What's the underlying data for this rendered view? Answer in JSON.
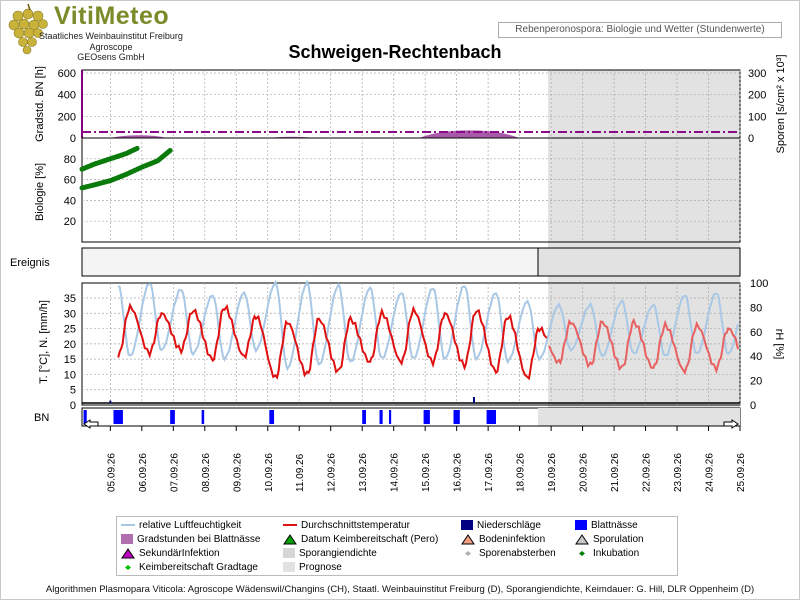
{
  "header": {
    "brand": "VitiMeteo",
    "brand_lines": [
      "Staatliches Weinbauinstitut Freiburg",
      "Agroscope",
      "GEOsens GmbH"
    ],
    "subtitle": "Rebenperonospora: Biologie und Wetter (Stundenwerte)",
    "station": "Schweigen-Rechtenbach"
  },
  "colors": {
    "humidity": "#a9c8e6",
    "temperature": "#e01010",
    "temperature_forecast": "#e86060",
    "biology": "#0a7a0a",
    "gradstunden": "#9a3c9a",
    "sporen_line": "#8a0a8a",
    "blattnaesse": "#0000ff",
    "forecast_bg": "#e2e2e2"
  },
  "icons": {
    "arrow-left": "arrow-left-icon",
    "arrow-right": "arrow-right-icon"
  },
  "panels": {
    "top": {
      "ylabel_left": "Gradstd. BN [h]",
      "ylabel_right": "Sporen [s/cm² x 10³]",
      "left_ticks": [
        "600",
        "400",
        "200",
        "0"
      ],
      "right_ticks": [
        "300",
        "200",
        "100",
        "0"
      ]
    },
    "bio": {
      "ylabel": "Biologie [%]",
      "ticks": [
        "80",
        "60",
        "40",
        "20"
      ]
    },
    "event": {
      "label": "Ereignis"
    },
    "weather": {
      "ylabel_left": "T. [°C], N. [mm/h]",
      "ylabel_right": "rH [%]",
      "left_ticks": [
        "35",
        "30",
        "25",
        "20",
        "15",
        "10",
        "5",
        "0"
      ],
      "right_ticks": [
        "100",
        "80",
        "60",
        "40",
        "20",
        "0"
      ]
    },
    "bn": {
      "label": "BN"
    }
  },
  "chart_data": {
    "type": "line",
    "x_labels": [
      "05.09.26",
      "06.09.26",
      "07.09.26",
      "08.09.26",
      "09.09.26",
      "10.09.26",
      "11.09.26",
      "12.09.26",
      "13.09.26",
      "14.09.26",
      "15.09.26",
      "16.09.26",
      "17.09.26",
      "18.09.26",
      "19.09.26",
      "20.09.26",
      "21.09.26",
      "22.09.26",
      "23.09.26",
      "24.09.26",
      "25.09.26"
    ],
    "x_range_days": [
      4.1,
      25.0
    ],
    "forecast_start_day": 18.9,
    "temperature_daily": {
      "day": [
        5,
        6,
        7,
        8,
        9,
        10,
        11,
        12,
        13,
        14,
        15,
        16,
        17,
        18,
        19,
        20,
        21,
        22,
        23,
        24,
        25
      ],
      "max": [
        32,
        30,
        31,
        32,
        29,
        27,
        28,
        28,
        30,
        31,
        30,
        31,
        29,
        25,
        27,
        27,
        27,
        26,
        26,
        25,
        26
      ],
      "min": [
        16,
        17,
        18,
        15,
        16,
        9,
        10,
        11,
        14,
        14,
        14,
        13,
        11,
        9,
        14,
        13,
        12,
        12,
        11,
        12,
        13
      ]
    },
    "humidity_daily": {
      "day": [
        5,
        6,
        7,
        8,
        9,
        10,
        11,
        12,
        13,
        14,
        15,
        16,
        17,
        18,
        19,
        20,
        21,
        22,
        23,
        24,
        25
      ],
      "max": [
        98,
        100,
        95,
        90,
        92,
        100,
        100,
        98,
        96,
        92,
        96,
        98,
        92,
        85,
        82,
        82,
        85,
        82,
        90,
        92,
        92
      ],
      "min": [
        40,
        45,
        42,
        38,
        45,
        30,
        33,
        35,
        38,
        38,
        38,
        38,
        36,
        38,
        45,
        40,
        42,
        40,
        42,
        42,
        42
      ]
    },
    "biology_series": [
      {
        "day": [
          4.1,
          4.5,
          5.0,
          5.5,
          5.85
        ],
        "percent": [
          70,
          75,
          80,
          85,
          90
        ]
      },
      {
        "day": [
          4.1,
          4.5,
          5.0,
          5.5,
          6.0,
          6.5,
          6.9
        ],
        "percent": [
          52,
          55,
          59,
          65,
          72,
          78,
          88
        ]
      }
    ],
    "gradstunden_bumps": [
      {
        "day_start": 5.0,
        "day_end": 6.8,
        "peak": 25
      },
      {
        "day_start": 10.0,
        "day_end": 11.5,
        "peak": 12
      },
      {
        "day_start": 14.8,
        "day_end": 18.0,
        "peak": 70
      }
    ],
    "sporen_level": 40,
    "blattnaesse_events": [
      {
        "day_start": 4.15,
        "day_end": 4.25
      },
      {
        "day_start": 5.1,
        "day_end": 5.4
      },
      {
        "day_start": 6.9,
        "day_end": 7.05
      },
      {
        "day_start": 7.9,
        "day_end": 7.98
      },
      {
        "day_start": 10.05,
        "day_end": 10.2
      },
      {
        "day_start": 13.0,
        "day_end": 13.12
      },
      {
        "day_start": 13.55,
        "day_end": 13.65
      },
      {
        "day_start": 13.85,
        "day_end": 13.92
      },
      {
        "day_start": 14.95,
        "day_end": 15.15
      },
      {
        "day_start": 15.9,
        "day_end": 16.1
      },
      {
        "day_start": 16.95,
        "day_end": 17.25
      }
    ],
    "precipitation_events": [
      {
        "day": 5.0,
        "mm": 0.6
      },
      {
        "day": 16.55,
        "mm": 1.5
      }
    ]
  },
  "legend": [
    {
      "label": "relative Luftfeuchtigkeit",
      "sym": "line",
      "color": "#a9c8e6"
    },
    {
      "label": "Durchschnittstemperatur",
      "sym": "line",
      "color": "#e01010"
    },
    {
      "label": "Niederschläge",
      "sym": "rect",
      "color": "#000080"
    },
    {
      "label": "Blattnässe",
      "sym": "rect",
      "color": "#0000ff"
    },
    {
      "label": "Gradstunden bei Blattnässe",
      "sym": "rect",
      "color": "#b070b0"
    },
    {
      "label": "Datum Keimbereitschaft (Pero)",
      "sym": "tri",
      "color": "#00a000"
    },
    {
      "label": "Bodeninfektion",
      "sym": "tri",
      "color": "#f0a080"
    },
    {
      "label": "Sporulation",
      "sym": "tri",
      "color": "#c8c8c8"
    },
    {
      "label": "SekundärInfektion",
      "sym": "tri",
      "color": "#c000c0"
    },
    {
      "label": "Sporangiendichte",
      "sym": "rect",
      "color": "#d6d6d6"
    },
    {
      "label": "Sporenabsterben",
      "sym": "diamond",
      "color": "#b0b0b0"
    },
    {
      "label": "Inkubation",
      "sym": "diamond",
      "color": "#008000"
    },
    {
      "label": "Keimbereitschaft Gradtage",
      "sym": "diamond",
      "color": "#00c000"
    },
    {
      "label": "Prognose",
      "sym": "rect",
      "color": "#e2e2e2"
    }
  ],
  "footer": "Algorithmen Plasmopara Viticola: Agroscope Wädenswil/Changins (CH), Staatl. Weinbauinstitut Freiburg (D), Sporangiendichte, Keimdauer: G. Hill, DLR Oppenheim (D)"
}
